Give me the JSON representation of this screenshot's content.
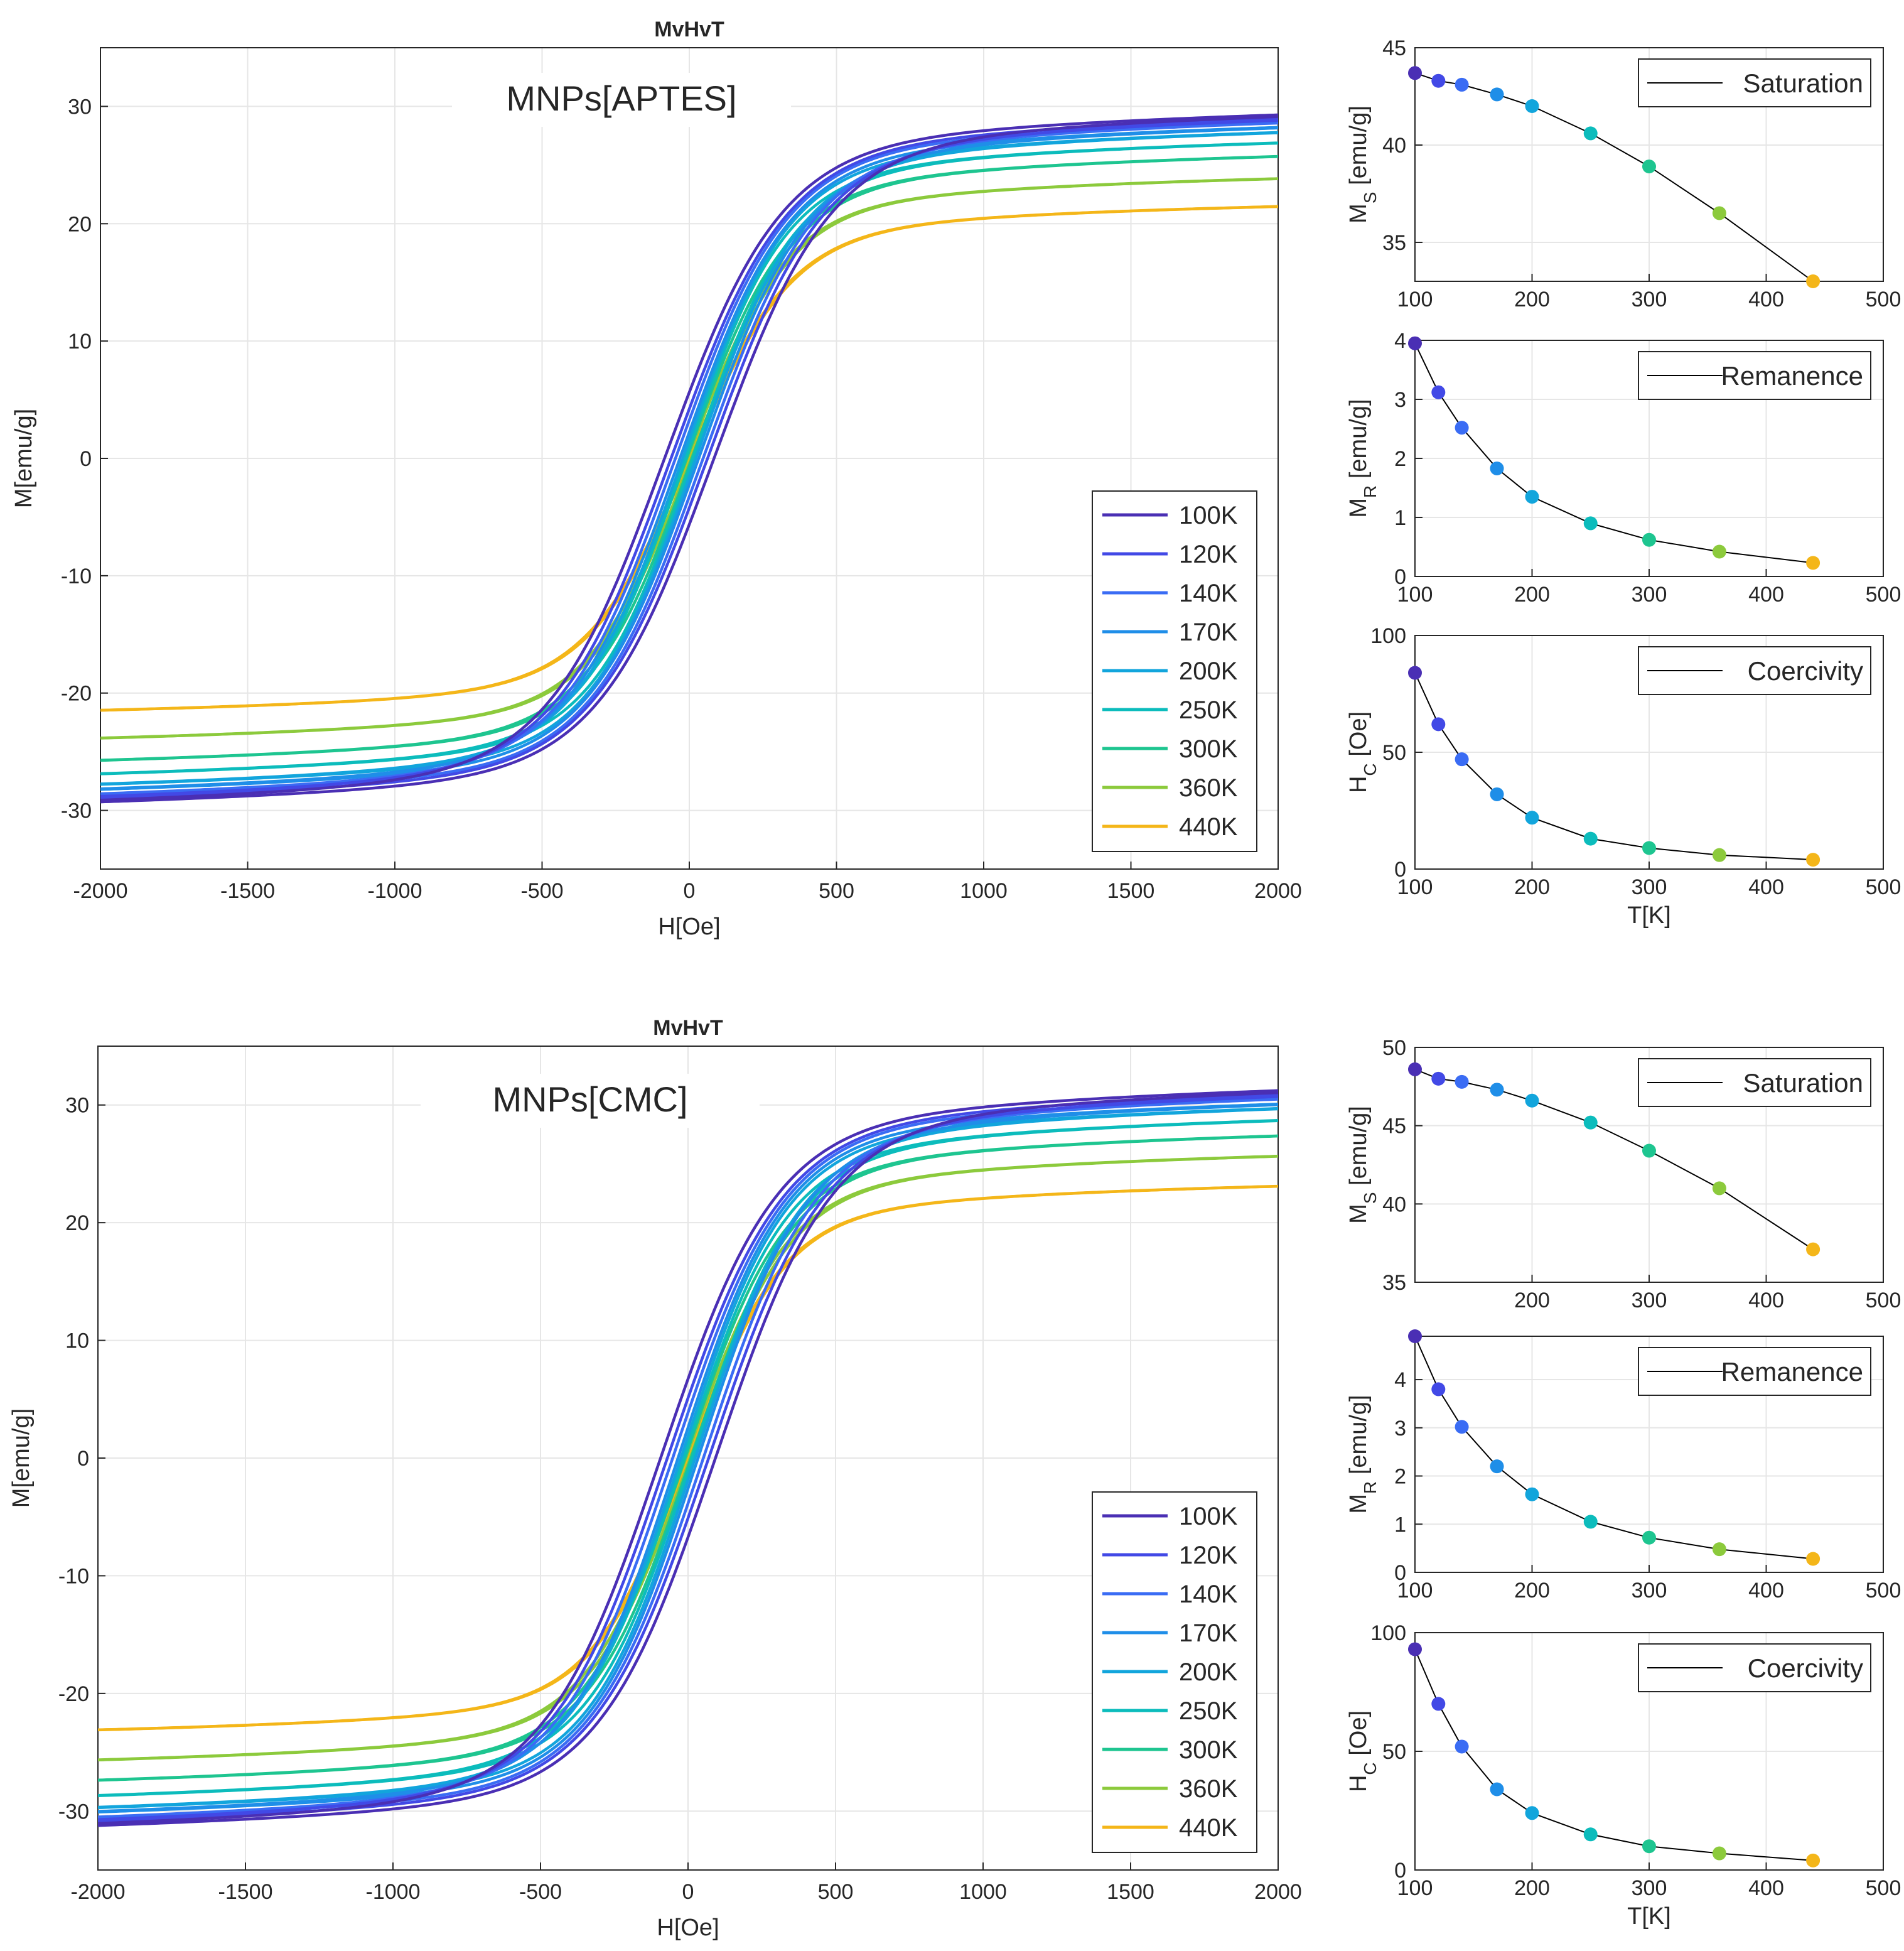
{
  "colors": {
    "100K": "#4a2fb4",
    "120K": "#4249e6",
    "140K": "#3a6cf4",
    "170K": "#1f8ee8",
    "200K": "#12a5dc",
    "250K": "#0cbcbc",
    "300K": "#1ec590",
    "360K": "#8cca3c",
    "440K": "#f4b619",
    "grid": "#e6e6e6",
    "axis": "#262626",
    "fit": "#000000"
  },
  "chart_data": [
    {
      "type": "line",
      "panel": "top-left",
      "title": "MvHvT",
      "annotation": "MNPs[APTES]",
      "xlabel": "H[Oe]",
      "ylabel": "M[emu/g]",
      "xlim": [
        -2000,
        2000
      ],
      "ylim": [
        -35,
        35
      ],
      "xticks": [
        "-2000",
        "-1500",
        "-1000",
        "-500",
        "0",
        "500",
        "1000",
        "1500",
        "2000"
      ],
      "yticks": [
        "-30",
        "-20",
        "-10",
        "0",
        "10",
        "20",
        "30"
      ],
      "grid": true,
      "legend_position": "bottom-right",
      "series": [
        {
          "name": "100K",
          "temperature": 100,
          "Ms": 30.7,
          "Mr": 4.0,
          "Hc": 84
        },
        {
          "name": "120K",
          "temperature": 120,
          "Ms": 30.3,
          "Mr": 3.1,
          "Hc": 62
        },
        {
          "name": "140K",
          "temperature": 140,
          "Ms": 30.0,
          "Mr": 2.5,
          "Hc": 47
        },
        {
          "name": "170K",
          "temperature": 170,
          "Ms": 29.5,
          "Mr": 1.8,
          "Hc": 32
        },
        {
          "name": "200K",
          "temperature": 200,
          "Ms": 29.0,
          "Mr": 1.35,
          "Hc": 22
        },
        {
          "name": "250K",
          "temperature": 250,
          "Ms": 28.0,
          "Mr": 0.9,
          "Hc": 13
        },
        {
          "name": "300K",
          "temperature": 300,
          "Ms": 26.8,
          "Mr": 0.6,
          "Hc": 9
        },
        {
          "name": "360K",
          "temperature": 360,
          "Ms": 24.8,
          "Mr": 0.4,
          "Hc": 6
        },
        {
          "name": "440K",
          "temperature": 440,
          "Ms": 22.4,
          "Mr": 0.2,
          "Hc": 4
        }
      ]
    },
    {
      "type": "line",
      "panel": "top-right-1",
      "title": "",
      "xlabel": "",
      "ylabel": "M_S [emu/g]",
      "xlim": [
        100,
        500
      ],
      "ylim": [
        33,
        45
      ],
      "xticks": [
        "100",
        "200",
        "300",
        "400",
        "500"
      ],
      "yticks": [
        "35",
        "40",
        "45"
      ],
      "grid": true,
      "legend": "Saturation",
      "legend_position": "top-right",
      "x": [
        100,
        120,
        140,
        170,
        200,
        250,
        300,
        360,
        440
      ],
      "y": [
        43.7,
        43.3,
        43.1,
        42.6,
        42.0,
        40.6,
        38.9,
        36.5,
        33.0
      ]
    },
    {
      "type": "line",
      "panel": "top-right-2",
      "title": "",
      "xlabel": "",
      "ylabel": "M_R [emu/g]",
      "xlim": [
        100,
        500
      ],
      "ylim": [
        0,
        4
      ],
      "xticks": [
        "100",
        "200",
        "300",
        "400",
        "500"
      ],
      "yticks": [
        "0",
        "1",
        "2",
        "3",
        "4"
      ],
      "grid": true,
      "legend": "Remanence",
      "legend_position": "top-right",
      "x": [
        100,
        120,
        140,
        170,
        200,
        250,
        300,
        360,
        440
      ],
      "y": [
        3.95,
        3.12,
        2.52,
        1.83,
        1.35,
        0.9,
        0.62,
        0.42,
        0.23
      ]
    },
    {
      "type": "line",
      "panel": "top-right-3",
      "title": "",
      "xlabel": "T[K]",
      "ylabel": "H_C [Oe]",
      "xlim": [
        100,
        500
      ],
      "ylim": [
        0,
        100
      ],
      "xticks": [
        "100",
        "200",
        "300",
        "400",
        "500"
      ],
      "yticks": [
        "0",
        "50",
        "100"
      ],
      "grid": true,
      "legend": "Coercivity",
      "legend_position": "top-right",
      "x": [
        100,
        120,
        140,
        170,
        200,
        250,
        300,
        360,
        440
      ],
      "y": [
        84,
        62,
        47,
        32,
        22,
        13,
        9,
        6,
        4
      ]
    },
    {
      "type": "line",
      "panel": "bottom-left",
      "title": "MvHvT",
      "annotation": "MNPs[CMC]",
      "xlabel": "H[Oe]",
      "ylabel": "M[emu/g]",
      "xlim": [
        -2000,
        2000
      ],
      "ylim": [
        -35,
        35
      ],
      "xticks": [
        "-2000",
        "-1500",
        "-1000",
        "-500",
        "0",
        "500",
        "1000",
        "1500",
        "2000"
      ],
      "yticks": [
        "-30",
        "-20",
        "-10",
        "0",
        "10",
        "20",
        "30"
      ],
      "grid": true,
      "legend_position": "bottom-right",
      "series": [
        {
          "name": "100K",
          "temperature": 100,
          "Ms": 32.7,
          "Mr": 4.9,
          "Hc": 93
        },
        {
          "name": "120K",
          "temperature": 120,
          "Ms": 32.3,
          "Mr": 3.8,
          "Hc": 70
        },
        {
          "name": "140K",
          "temperature": 140,
          "Ms": 32.0,
          "Mr": 3.0,
          "Hc": 52
        },
        {
          "name": "170K",
          "temperature": 170,
          "Ms": 31.4,
          "Mr": 2.2,
          "Hc": 34
        },
        {
          "name": "200K",
          "temperature": 200,
          "Ms": 31.0,
          "Mr": 1.6,
          "Hc": 24
        },
        {
          "name": "250K",
          "temperature": 250,
          "Ms": 29.9,
          "Mr": 1.05,
          "Hc": 15
        },
        {
          "name": "300K",
          "temperature": 300,
          "Ms": 28.5,
          "Mr": 0.72,
          "Hc": 10
        },
        {
          "name": "360K",
          "temperature": 360,
          "Ms": 26.7,
          "Mr": 0.48,
          "Hc": 7
        },
        {
          "name": "440K",
          "temperature": 440,
          "Ms": 24.0,
          "Mr": 0.28,
          "Hc": 4
        }
      ]
    },
    {
      "type": "line",
      "panel": "bottom-right-1",
      "title": "",
      "xlabel": "",
      "ylabel": "M_S [emu/g]",
      "xlim": [
        100,
        500
      ],
      "ylim": [
        35,
        50
      ],
      "xticks": [
        "200",
        "300",
        "400",
        "500"
      ],
      "yticks": [
        "35",
        "40",
        "45",
        "50"
      ],
      "grid": true,
      "legend": "Saturation",
      "legend_position": "top-right",
      "x": [
        100,
        120,
        140,
        170,
        200,
        250,
        300,
        360,
        440
      ],
      "y": [
        48.6,
        48.0,
        47.8,
        47.3,
        46.6,
        45.2,
        43.4,
        41.0,
        37.1
      ]
    },
    {
      "type": "line",
      "panel": "bottom-right-2",
      "title": "",
      "xlabel": "",
      "ylabel": "M_R [emu/g]",
      "xlim": [
        100,
        500
      ],
      "ylim": [
        0,
        4.9
      ],
      "xticks": [
        "100",
        "200",
        "300",
        "400",
        "500"
      ],
      "yticks": [
        "0",
        "1",
        "2",
        "3",
        "4"
      ],
      "grid": true,
      "legend": "Remanence",
      "legend_position": "top-right",
      "x": [
        100,
        120,
        140,
        170,
        200,
        250,
        300,
        360,
        440
      ],
      "y": [
        4.9,
        3.8,
        3.02,
        2.2,
        1.62,
        1.05,
        0.72,
        0.48,
        0.28
      ]
    },
    {
      "type": "line",
      "panel": "bottom-right-3",
      "title": "",
      "xlabel": "T[K]",
      "ylabel": "H_C [Oe]",
      "xlim": [
        100,
        500
      ],
      "ylim": [
        0,
        100
      ],
      "xticks": [
        "100",
        "200",
        "300",
        "400",
        "500"
      ],
      "yticks": [
        "0",
        "50",
        "100"
      ],
      "grid": true,
      "legend": "Coercivity",
      "legend_position": "top-right",
      "x": [
        100,
        120,
        140,
        170,
        200,
        250,
        300,
        360,
        440
      ],
      "y": [
        93,
        70,
        52,
        34,
        24,
        15,
        10,
        7,
        4
      ]
    }
  ]
}
